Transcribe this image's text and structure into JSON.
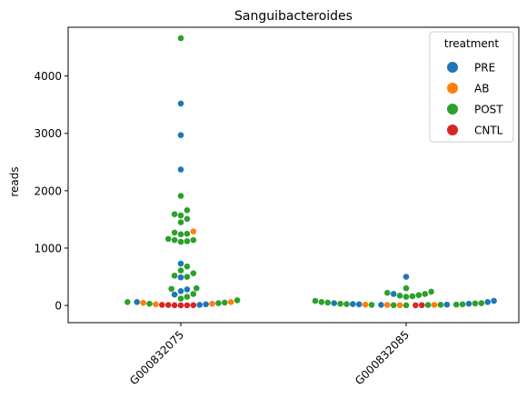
{
  "chart_data": {
    "type": "scatter",
    "subtype": "swarm",
    "title": "Sanguibacteroides",
    "xlabel": "",
    "ylabel": "reads",
    "categories": [
      "G000832075",
      "G000832085"
    ],
    "ylim": [
      -300,
      4850
    ],
    "yticks": [
      0,
      1000,
      2000,
      3000,
      4000
    ],
    "grid": false,
    "legend": {
      "title": "treatment",
      "position": "top-right",
      "entries": [
        {
          "name": "PRE",
          "color": "#1f77b4"
        },
        {
          "name": "AB",
          "color": "#ff7f0e"
        },
        {
          "name": "POST",
          "color": "#2ca02c"
        },
        {
          "name": "CNTL",
          "color": "#d62728"
        }
      ]
    },
    "series": [
      {
        "name": "PRE",
        "color": "#1f77b4",
        "points": [
          {
            "x": "G000832075",
            "y": 3520
          },
          {
            "x": "G000832075",
            "y": 2970
          },
          {
            "x": "G000832075",
            "y": 2370
          },
          {
            "x": "G000832075",
            "y": 730
          },
          {
            "x": "G000832075",
            "y": 490
          },
          {
            "x": "G000832075",
            "y": 280
          },
          {
            "x": "G000832075",
            "y": 250
          },
          {
            "x": "G000832075",
            "y": 190
          },
          {
            "x": "G000832075",
            "y": 60
          },
          {
            "x": "G000832075",
            "y": 20
          },
          {
            "x": "G000832075",
            "y": 10
          },
          {
            "x": "G000832085",
            "y": 500
          },
          {
            "x": "G000832085",
            "y": 200
          },
          {
            "x": "G000832085",
            "y": 80
          },
          {
            "x": "G000832085",
            "y": 60
          },
          {
            "x": "G000832085",
            "y": 40
          },
          {
            "x": "G000832085",
            "y": 30
          },
          {
            "x": "G000832085",
            "y": 25
          },
          {
            "x": "G000832085",
            "y": 20
          },
          {
            "x": "G000832085",
            "y": 15
          },
          {
            "x": "G000832085",
            "y": 10
          }
        ]
      },
      {
        "name": "AB",
        "color": "#ff7f0e",
        "points": [
          {
            "x": "G000832075",
            "y": 1290
          },
          {
            "x": "G000832075",
            "y": 60
          },
          {
            "x": "G000832075",
            "y": 45
          },
          {
            "x": "G000832075",
            "y": 30
          },
          {
            "x": "G000832075",
            "y": 20
          },
          {
            "x": "G000832085",
            "y": 15
          },
          {
            "x": "G000832085",
            "y": 10
          },
          {
            "x": "G000832085",
            "y": 8
          },
          {
            "x": "G000832085",
            "y": 5
          }
        ]
      },
      {
        "name": "POST",
        "color": "#2ca02c",
        "points": [
          {
            "x": "G000832075",
            "y": 4660
          },
          {
            "x": "G000832075",
            "y": 1910
          },
          {
            "x": "G000832075",
            "y": 1660
          },
          {
            "x": "G000832075",
            "y": 1590
          },
          {
            "x": "G000832075",
            "y": 1570
          },
          {
            "x": "G000832075",
            "y": 1510
          },
          {
            "x": "G000832075",
            "y": 1450
          },
          {
            "x": "G000832075",
            "y": 1270
          },
          {
            "x": "G000832075",
            "y": 1250
          },
          {
            "x": "G000832075",
            "y": 1240
          },
          {
            "x": "G000832075",
            "y": 1160
          },
          {
            "x": "G000832075",
            "y": 1140
          },
          {
            "x": "G000832075",
            "y": 1140
          },
          {
            "x": "G000832075",
            "y": 1120
          },
          {
            "x": "G000832075",
            "y": 1110
          },
          {
            "x": "G000832075",
            "y": 680
          },
          {
            "x": "G000832075",
            "y": 610
          },
          {
            "x": "G000832075",
            "y": 560
          },
          {
            "x": "G000832075",
            "y": 520
          },
          {
            "x": "G000832075",
            "y": 500
          },
          {
            "x": "G000832075",
            "y": 300
          },
          {
            "x": "G000832075",
            "y": 290
          },
          {
            "x": "G000832075",
            "y": 200
          },
          {
            "x": "G000832075",
            "y": 150
          },
          {
            "x": "G000832075",
            "y": 120
          },
          {
            "x": "G000832075",
            "y": 90
          },
          {
            "x": "G000832075",
            "y": 60
          },
          {
            "x": "G000832075",
            "y": 50
          },
          {
            "x": "G000832075",
            "y": 40
          },
          {
            "x": "G000832075",
            "y": 30
          },
          {
            "x": "G000832085",
            "y": 300
          },
          {
            "x": "G000832085",
            "y": 240
          },
          {
            "x": "G000832085",
            "y": 220
          },
          {
            "x": "G000832085",
            "y": 200
          },
          {
            "x": "G000832085",
            "y": 180
          },
          {
            "x": "G000832085",
            "y": 170
          },
          {
            "x": "G000832085",
            "y": 160
          },
          {
            "x": "G000832085",
            "y": 150
          },
          {
            "x": "G000832085",
            "y": 80
          },
          {
            "x": "G000832085",
            "y": 60
          },
          {
            "x": "G000832085",
            "y": 50
          },
          {
            "x": "G000832085",
            "y": 40
          },
          {
            "x": "G000832085",
            "y": 35
          },
          {
            "x": "G000832085",
            "y": 30
          },
          {
            "x": "G000832085",
            "y": 25
          },
          {
            "x": "G000832085",
            "y": 20
          },
          {
            "x": "G000832085",
            "y": 15
          },
          {
            "x": "G000832085",
            "y": 12
          },
          {
            "x": "G000832085",
            "y": 10
          },
          {
            "x": "G000832085",
            "y": 8
          },
          {
            "x": "G000832085",
            "y": 5
          },
          {
            "x": "G000832085",
            "y": 3
          }
        ]
      },
      {
        "name": "CNTL",
        "color": "#d62728",
        "points": [
          {
            "x": "G000832075",
            "y": 10
          },
          {
            "x": "G000832075",
            "y": 8
          },
          {
            "x": "G000832075",
            "y": 5
          },
          {
            "x": "G000832075",
            "y": 4
          },
          {
            "x": "G000832075",
            "y": 3
          },
          {
            "x": "G000832075",
            "y": 2
          },
          {
            "x": "G000832085",
            "y": 5
          },
          {
            "x": "G000832085",
            "y": 3
          }
        ]
      }
    ]
  }
}
